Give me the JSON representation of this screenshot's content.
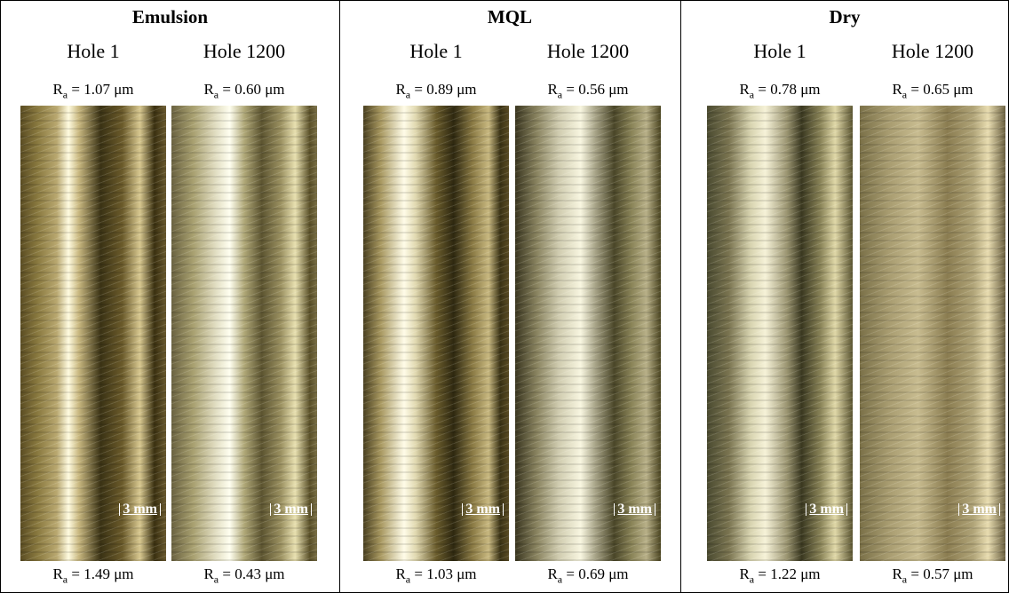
{
  "roughness_symbol": "R",
  "roughness_subscript": "a",
  "scale_bar": "3 mm",
  "panels": [
    {
      "title": "Emulsion",
      "holes": [
        {
          "label": "Hole 1",
          "ra_top": "= 1.07 μm",
          "ra_bottom": "= 1.49 μm"
        },
        {
          "label": "Hole 1200",
          "ra_top": "= 0.60 μm",
          "ra_bottom": "= 0.43 μm"
        }
      ]
    },
    {
      "title": "MQL",
      "holes": [
        {
          "label": "Hole 1",
          "ra_top": "= 0.89 μm",
          "ra_bottom": "= 1.03 μm"
        },
        {
          "label": "Hole 1200",
          "ra_top": "= 0.56 μm",
          "ra_bottom": "= 0.69 μm"
        }
      ]
    },
    {
      "title": "Dry",
      "holes": [
        {
          "label": "Hole 1",
          "ra_top": "= 0.78 μm",
          "ra_bottom": "= 1.22 μm"
        },
        {
          "label": "Hole 1200",
          "ra_top": "= 0.65 μm",
          "ra_bottom": "= 0.57 μm"
        }
      ]
    }
  ]
}
